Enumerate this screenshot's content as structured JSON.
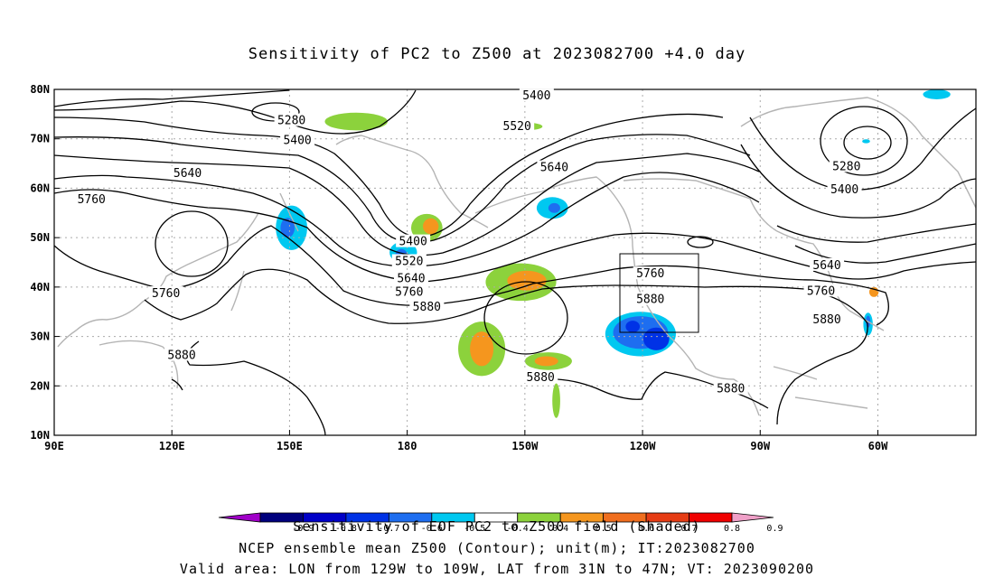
{
  "title": "Sensitivity of PC2 to Z500 at 2023082700 +4.0 day",
  "map": {
    "lat_ticks": [
      "80N",
      "70N",
      "60N",
      "50N",
      "40N",
      "30N",
      "20N",
      "10N"
    ],
    "lon_ticks": [
      "90E",
      "120E",
      "150E",
      "180",
      "150W",
      "120W",
      "90W",
      "60W"
    ],
    "contour_levels": [
      "5280",
      "5400",
      "5520",
      "5640",
      "5760",
      "5880"
    ],
    "contour_labels": [
      {
        "text": "5280",
        "lon": 150.5,
        "lat": 73.5
      },
      {
        "text": "5400",
        "lon": 152.0,
        "lat": 69.5
      },
      {
        "text": "5640",
        "lon": 124.0,
        "lat": 62.8
      },
      {
        "text": "5760",
        "lon": 99.5,
        "lat": 57.5
      },
      {
        "text": "5760",
        "lon": 118.5,
        "lat": 38.5
      },
      {
        "text": "5880",
        "lon": 122.5,
        "lat": 26.0
      },
      {
        "text": "5400",
        "lon": -147.0,
        "lat": 78.5
      },
      {
        "text": "5520",
        "lon": -152.0,
        "lat": 72.3
      },
      {
        "text": "5640",
        "lon": -142.5,
        "lat": 64.0
      },
      {
        "text": "5400",
        "lon": -178.5,
        "lat": 49.0
      },
      {
        "text": "5520",
        "lon": -179.5,
        "lat": 45.0
      },
      {
        "text": "5640",
        "lon": -179.0,
        "lat": 41.5
      },
      {
        "text": "5760",
        "lon": -179.5,
        "lat": 38.8
      },
      {
        "text": "5880",
        "lon": -175.0,
        "lat": 35.8
      },
      {
        "text": "5880",
        "lon": -146.0,
        "lat": 21.5
      },
      {
        "text": "5760",
        "lon": -118.0,
        "lat": 42.5
      },
      {
        "text": "5880",
        "lon": -118.0,
        "lat": 37.3
      },
      {
        "text": "5880",
        "lon": -97.5,
        "lat": 19.2
      },
      {
        "text": "5280",
        "lon": -68.0,
        "lat": 64.2
      },
      {
        "text": "5400",
        "lon": -68.5,
        "lat": 59.5
      },
      {
        "text": "5640",
        "lon": -73.0,
        "lat": 44.2
      },
      {
        "text": "5760",
        "lon": -74.5,
        "lat": 39.0
      },
      {
        "text": "5880",
        "lon": -73.0,
        "lat": 33.2
      }
    ],
    "shaded_regions": [
      {
        "color": "#00c8f0",
        "lon": 150.5,
        "lat": 52.0,
        "rx": 4.0,
        "ry": 4.5
      },
      {
        "color": "#1e6ef0",
        "lon": 149.5,
        "lat": 52.0,
        "rx": 1.8,
        "ry": 2.0
      },
      {
        "color": "#00c8f0",
        "lon": 179.0,
        "lat": 47.0,
        "rx": 3.5,
        "ry": 2.2
      },
      {
        "color": "#1e6ef0",
        "lon": 178.5,
        "lat": 46.5,
        "rx": 1.5,
        "ry": 1.2
      },
      {
        "color": "#8cd23c",
        "lon": 185.0,
        "lat": 52.0,
        "rx": 4.0,
        "ry": 2.8
      },
      {
        "color": "#f5961e",
        "lon": 186.0,
        "lat": 52.3,
        "rx": 2.0,
        "ry": 1.6
      },
      {
        "color": "#8cd23c",
        "lon": 167.0,
        "lat": 73.5,
        "rx": 8.0,
        "ry": 1.8
      },
      {
        "color": "#8cd23c",
        "lon": -150.0,
        "lat": 72.5,
        "rx": 4.5,
        "ry": 0.8
      },
      {
        "color": "#00c8f0",
        "lon": -143.0,
        "lat": 56.0,
        "rx": 4.0,
        "ry": 2.2
      },
      {
        "color": "#1e6ef0",
        "lon": -142.5,
        "lat": 56.0,
        "rx": 1.5,
        "ry": 1.0
      },
      {
        "color": "#8cd23c",
        "lon": -151.0,
        "lat": 41.0,
        "rx": 9.0,
        "ry": 3.8
      },
      {
        "color": "#f5961e",
        "lon": -149.5,
        "lat": 41.3,
        "rx": 5.0,
        "ry": 2.0
      },
      {
        "color": "#8cd23c",
        "lon": -161.0,
        "lat": 27.5,
        "rx": 6.0,
        "ry": 5.5
      },
      {
        "color": "#f5961e",
        "lon": -161.0,
        "lat": 27.5,
        "rx": 3.0,
        "ry": 3.5
      },
      {
        "color": "#8cd23c",
        "lon": -144.0,
        "lat": 25.0,
        "rx": 6.0,
        "ry": 1.8
      },
      {
        "color": "#f5961e",
        "lon": -144.5,
        "lat": 25.0,
        "rx": 3.0,
        "ry": 1.0
      },
      {
        "color": "#8cd23c",
        "lon": -142.0,
        "lat": 17.0,
        "rx": 1.0,
        "ry": 3.5
      },
      {
        "color": "#00c8f0",
        "lon": -120.5,
        "lat": 30.5,
        "rx": 9.0,
        "ry": 4.5
      },
      {
        "color": "#1e6ef0",
        "lon": -120.5,
        "lat": 30.8,
        "rx": 7.0,
        "ry": 3.3
      },
      {
        "color": "#0032e6",
        "lon": -116.5,
        "lat": 29.5,
        "rx": 3.3,
        "ry": 2.3
      },
      {
        "color": "#0032e6",
        "lon": -122.5,
        "lat": 32.0,
        "rx": 1.8,
        "ry": 1.2
      },
      {
        "color": "#00c8f0",
        "lon": -62.5,
        "lat": 32.5,
        "rx": 1.2,
        "ry": 2.3
      },
      {
        "color": "#1e6ef0",
        "lon": -62.5,
        "lat": 33.0,
        "rx": 0.6,
        "ry": 1.2
      },
      {
        "color": "#f5961e",
        "lon": -61.0,
        "lat": 39.0,
        "rx": 1.2,
        "ry": 1.0
      },
      {
        "color": "#00c8f0",
        "lon": -45.0,
        "lat": 79.0,
        "rx": 3.5,
        "ry": 1.0
      },
      {
        "color": "#00c8f0",
        "lon": -63.0,
        "lat": 69.5,
        "rx": 1.0,
        "ry": 0.4
      }
    ]
  },
  "legend": {
    "colors": [
      "#a000c8",
      "#00007d",
      "#0000c8",
      "#0032e6",
      "#1e6ef0",
      "#00c8f0",
      "#ffffff",
      "#8cd23c",
      "#f5961e",
      "#f06e1e",
      "#e63c14",
      "#f00000",
      "#f0a0c8"
    ],
    "tick_labels": [
      "-0.9",
      "-0.8",
      "-0.7",
      "-0.6",
      "-0.5",
      "-0.4",
      "0.4",
      "0.5",
      "0.6",
      "0.7",
      "0.8",
      "0.9"
    ]
  },
  "legend_caption": "Sensitivity of EOF PC2 to Z500 field (Shaded)",
  "footer_line1": "NCEP ensemble mean Z500 (Contour); unit(m); IT:2023082700",
  "footer_line2": "Valid area: LON from 129W to 109W, LAT from 31N to 47N; VT: 2023090200"
}
